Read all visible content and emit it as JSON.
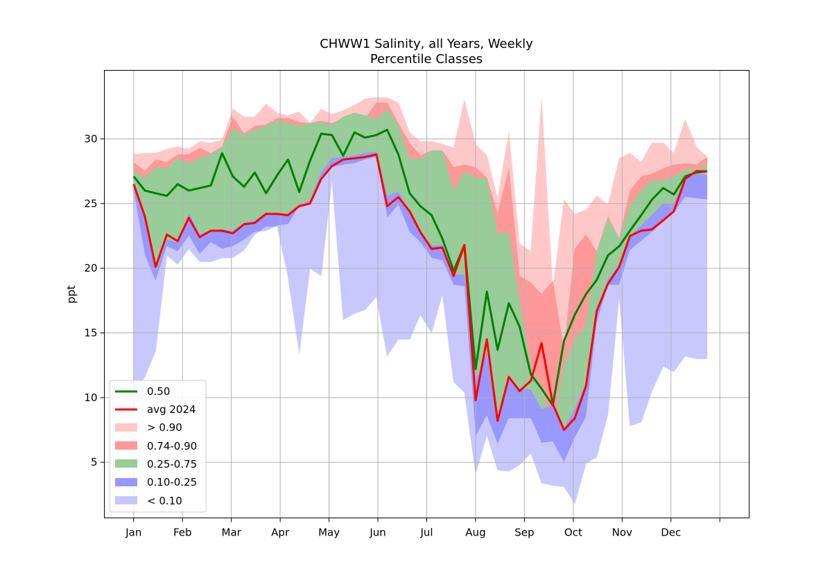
{
  "chart_data": {
    "type": "area",
    "title": "CHWW1 Salinity, all Years, Weekly",
    "subtitle": "Percentile Classes",
    "xlabel": "",
    "ylabel": "ppt",
    "x_tick_labels": [
      "Jan",
      "Feb",
      "Mar",
      "Apr",
      "May",
      "Jun",
      "Jul",
      "Aug",
      "Sep",
      "Oct",
      "Nov",
      "Dec",
      ""
    ],
    "y_ticks": [
      5,
      10,
      15,
      20,
      25,
      30
    ],
    "ylim": [
      0.7,
      35.3
    ],
    "xlim": [
      -0.6,
      12.6
    ],
    "grid": true,
    "legend_position": "lower-left",
    "legend": [
      "0.50",
      "avg 2024",
      "> 0.90",
      "0.74-0.90",
      "0.25-0.75",
      "0.10-0.25",
      "< 0.10"
    ],
    "colors": {
      "gt090": "#ffc8c8",
      "p74_90": "#ff9898",
      "p25_75": "#98cc98",
      "p10_25": "#9898ff",
      "lt010": "#c8c8ff",
      "median": "#008000",
      "avg2024": "#ff0000",
      "grid": "#b0b0b0"
    },
    "week_month_positions": [
      0.0,
      0.23,
      0.45,
      0.68,
      0.9,
      1.13,
      1.35,
      1.58,
      1.81,
      2.03,
      2.26,
      2.48,
      2.71,
      2.94,
      3.16,
      3.39,
      3.61,
      3.84,
      4.06,
      4.29,
      4.52,
      4.74,
      4.97,
      5.19,
      5.42,
      5.65,
      5.87,
      6.1,
      6.32,
      6.55,
      6.77,
      7.0,
      7.23,
      7.45,
      7.68,
      7.9,
      8.13,
      8.35,
      8.58,
      8.81,
      9.03,
      9.26,
      9.48,
      9.71,
      9.94,
      10.16,
      10.39,
      10.61,
      10.84,
      11.06,
      11.29,
      11.52,
      11.74
    ],
    "series": [
      {
        "name": "0.50",
        "values": [
          27.1,
          26.0,
          25.8,
          25.6,
          26.5,
          26.0,
          26.2,
          26.4,
          28.9,
          27.1,
          26.3,
          27.4,
          25.8,
          27.2,
          28.4,
          25.9,
          28.3,
          30.4,
          30.3,
          28.7,
          30.5,
          30.1,
          30.3,
          30.7,
          28.8,
          25.8,
          24.8,
          24.1,
          22.3,
          19.8,
          21.8,
          12.2,
          18.2,
          13.7,
          17.3,
          15.5,
          11.8,
          10.7,
          9.4,
          14.4,
          16.4,
          18.0,
          19.1,
          21.0,
          21.7,
          22.9,
          24.1,
          25.3,
          26.2,
          25.7,
          27.1,
          27.4,
          27.5
        ]
      },
      {
        "name": "avg 2024",
        "values": [
          26.5,
          24.0,
          20.1,
          22.6,
          22.1,
          23.9,
          22.4,
          22.9,
          22.9,
          22.7,
          23.4,
          23.5,
          24.2,
          24.2,
          24.1,
          24.8,
          25.0,
          26.9,
          27.9,
          28.4,
          28.5,
          28.6,
          28.8,
          24.8,
          25.5,
          24.4,
          22.8,
          21.5,
          21.6,
          19.4,
          21.8,
          9.8,
          14.5,
          8.2,
          11.6,
          10.5,
          11.3,
          14.2,
          9.5,
          7.5,
          8.4,
          10.9,
          16.7,
          18.8,
          20.1,
          22.5,
          22.9,
          23.0,
          23.7,
          24.4,
          26.9,
          27.5,
          27.5
        ]
      }
    ],
    "bands": {
      "p00": [
        10.3,
        11.6,
        13.6,
        21.0,
        20.3,
        21.5,
        20.5,
        20.5,
        20.8,
        20.8,
        21.4,
        22.6,
        23.2,
        23.2,
        19.3,
        13.4,
        20.0,
        19.4,
        26.8,
        16.0,
        16.5,
        16.8,
        17.8,
        13.2,
        14.5,
        14.5,
        16.4,
        15.0,
        18.0,
        11.2,
        10.4,
        4.1,
        7.1,
        4.4,
        4.3,
        4.8,
        5.7,
        3.4,
        3.2,
        3.1,
        1.8,
        4.9,
        5.4,
        8.7,
        17.8,
        7.8,
        8.1,
        10.5,
        12.4,
        12.0,
        13.2,
        13.0,
        13.0
      ],
      "p10": [
        25.9,
        21.0,
        19.0,
        21.7,
        21.3,
        22.5,
        21.1,
        22.0,
        21.5,
        21.7,
        22.2,
        22.8,
        22.9,
        23.3,
        23.4,
        24.8,
        24.9,
        26.8,
        27.8,
        28.0,
        28.1,
        28.4,
        28.6,
        23.9,
        24.9,
        22.8,
        22.0,
        20.8,
        20.6,
        18.7,
        18.6,
        7.0,
        8.6,
        6.4,
        8.4,
        8.4,
        8.4,
        6.5,
        6.6,
        5.0,
        6.9,
        8.5,
        15.8,
        18.7,
        18.7,
        21.4,
        22.1,
        22.8,
        23.6,
        24.3,
        25.5,
        25.4,
        25.3
      ],
      "p25": [
        26.5,
        23.7,
        19.7,
        22.2,
        22.0,
        24.2,
        22.6,
        22.9,
        23.0,
        22.9,
        23.5,
        23.7,
        24.3,
        24.2,
        24.2,
        24.9,
        25.2,
        27.4,
        28.5,
        28.6,
        28.7,
        28.9,
        29.0,
        25.6,
        25.9,
        24.4,
        22.9,
        21.7,
        21.8,
        19.5,
        19.5,
        11.3,
        13.5,
        8.4,
        11.6,
        10.7,
        10.6,
        9.1,
        9.4,
        7.6,
        9.1,
        11.1,
        16.9,
        19.1,
        20.3,
        22.5,
        23.3,
        24.1,
        25.0,
        25.0,
        26.9,
        27.3,
        27.2
      ],
      "p75": [
        27.5,
        27.0,
        27.8,
        27.7,
        28.5,
        28.1,
        28.5,
        28.8,
        29.3,
        30.8,
        30.3,
        30.7,
        31.0,
        31.4,
        31.2,
        31.0,
        31.2,
        31.3,
        31.1,
        31.7,
        32.0,
        31.8,
        31.5,
        32.3,
        31.0,
        28.5,
        28.4,
        29.1,
        29.1,
        25.9,
        27.5,
        27.0,
        26.9,
        22.6,
        22.8,
        17.4,
        12.5,
        10.7,
        7.6,
        12.5,
        14.5,
        15.6,
        21.3,
        23.8,
        22.3,
        24.8,
        26.0,
        26.8,
        26.8,
        27.1,
        27.6,
        27.7,
        28.0
      ],
      "p90": [
        28.2,
        27.5,
        28.4,
        28.2,
        28.8,
        28.8,
        29.3,
        28.9,
        29.4,
        31.7,
        30.4,
        31.0,
        31.1,
        31.6,
        31.6,
        31.3,
        31.2,
        31.4,
        31.2,
        31.6,
        31.8,
        31.6,
        32.8,
        32.8,
        31.2,
        29.7,
        28.7,
        29.1,
        29.1,
        27.8,
        28.0,
        27.8,
        27.0,
        24.2,
        27.7,
        19.4,
        18.9,
        18.0,
        19.0,
        13.7,
        21.5,
        22.6,
        21.3,
        24.0,
        22.3,
        26.0,
        27.1,
        27.3,
        27.7,
        28.0,
        28.1,
        28.0,
        28.6
      ],
      "p100": [
        28.8,
        28.9,
        28.9,
        29.2,
        29.4,
        29.2,
        29.8,
        29.7,
        29.9,
        32.3,
        31.7,
        31.7,
        32.7,
        32.0,
        31.8,
        32.1,
        31.2,
        32.3,
        31.9,
        32.2,
        32.6,
        33.1,
        33.2,
        33.2,
        32.8,
        30.5,
        29.8,
        29.8,
        29.6,
        29.3,
        33.0,
        29.6,
        28.7,
        25.4,
        30.5,
        21.9,
        21.3,
        33.1,
        18.4,
        25.3,
        24.2,
        24.5,
        25.6,
        24.9,
        28.5,
        28.9,
        28.2,
        29.7,
        29.7,
        28.9,
        31.5,
        29.4,
        28.6
      ]
    }
  }
}
